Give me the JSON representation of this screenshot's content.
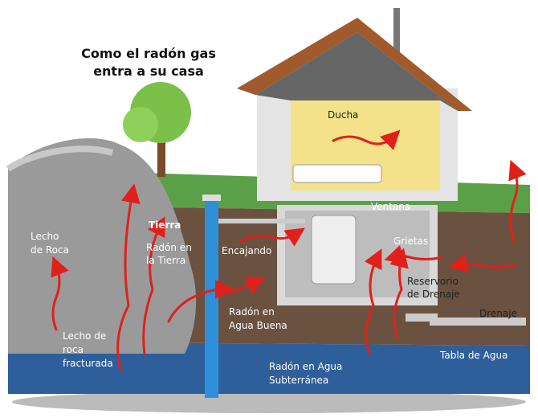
{
  "title": {
    "lines": [
      "Como el radón gas",
      "entra a su casa"
    ]
  },
  "labels": [
    {
      "lines": [
        "Ducha"
      ]
    },
    {
      "lines": [
        "Tierra"
      ]
    },
    {
      "lines": [
        "Radón en",
        "la Tierra"
      ]
    },
    {
      "lines": [
        "Lecho",
        "de Roca"
      ]
    },
    {
      "lines": [
        "Encajando"
      ]
    },
    {
      "lines": [
        "Ventana"
      ]
    },
    {
      "lines": [
        "Grietas"
      ]
    },
    {
      "lines": [
        "Reservorio",
        "de Drenaje"
      ]
    },
    {
      "lines": [
        "Drenaje"
      ]
    },
    {
      "lines": [
        "Radón en",
        "Agua Buena"
      ]
    },
    {
      "lines": [
        "Lecho de",
        "roca",
        "fracturada"
      ]
    },
    {
      "lines": [
        "Radón en Agua",
        "Subterránea"
      ]
    },
    {
      "lines": [
        "Tabla de Agua"
      ]
    }
  ]
}
